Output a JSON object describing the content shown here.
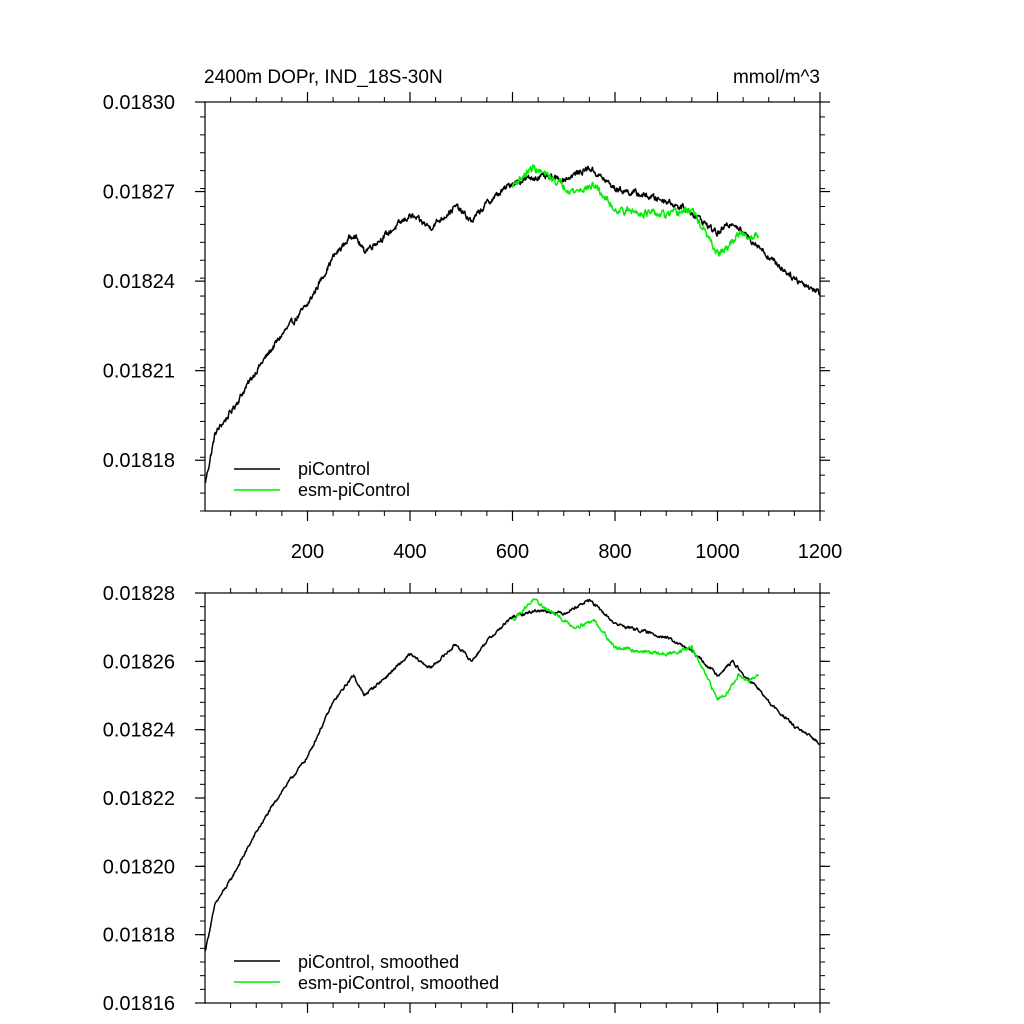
{
  "colors": {
    "picontrol": "#000000",
    "esm_picontrol": "#00ee00",
    "axis": "#000000",
    "background": "#ffffff"
  },
  "chart_data": [
    {
      "type": "line",
      "title": "2400m DOPr, IND_18S-30N",
      "units": "mmol/m^3",
      "xlim": [
        0,
        1200
      ],
      "ylim": [
        0.018163,
        0.0183
      ],
      "xticks": [
        200,
        400,
        600,
        800,
        1000,
        1200
      ],
      "xtick_labels": [
        "200",
        "400",
        "600",
        "800",
        "1000",
        "1200"
      ],
      "yticks": [
        0.01818,
        0.01821,
        0.01824,
        0.01827,
        0.0183
      ],
      "ytick_labels": [
        "0.01818",
        "0.01821",
        "0.01824",
        "0.01827",
        "0.01830"
      ],
      "legend_position": "bottom-left",
      "series": [
        {
          "name": "piControl",
          "color": "#000000",
          "noise": 1.2e-06,
          "x": [
            0,
            20,
            50,
            100,
            150,
            200,
            250,
            290,
            310,
            350,
            400,
            440,
            490,
            520,
            550,
            600,
            650,
            700,
            750,
            800,
            850,
            900,
            950,
            1000,
            1030,
            1050,
            1080,
            1100,
            1150,
            1200
          ],
          "y": [
            0.018172,
            0.018189,
            0.018196,
            0.01821,
            0.018222,
            0.018232,
            0.018248,
            0.018256,
            0.01825,
            0.018255,
            0.018262,
            0.018258,
            0.018265,
            0.01826,
            0.018266,
            0.018273,
            0.018275,
            0.018274,
            0.018278,
            0.018271,
            0.018269,
            0.018267,
            0.018263,
            0.018256,
            0.01826,
            0.018256,
            0.018252,
            0.018248,
            0.018241,
            0.018236
          ]
        },
        {
          "name": "esm-piControl",
          "color": "#00ee00",
          "noise": 1.4e-06,
          "x": [
            600,
            640,
            680,
            720,
            760,
            800,
            850,
            900,
            950,
            980,
            1000,
            1020,
            1040,
            1060,
            1080
          ],
          "y": [
            0.018272,
            0.018278,
            0.018274,
            0.01827,
            0.018272,
            0.018264,
            0.018263,
            0.018262,
            0.018264,
            0.018255,
            0.018249,
            0.018251,
            0.018256,
            0.018254,
            0.018256
          ]
        }
      ]
    },
    {
      "type": "line",
      "title": "",
      "units": "",
      "xlim": [
        0,
        1200
      ],
      "ylim": [
        0.01816,
        0.01828
      ],
      "xticks": [
        200,
        400,
        600,
        800,
        1000,
        1200
      ],
      "xtick_labels": [],
      "yticks": [
        0.01816,
        0.01818,
        0.0182,
        0.01822,
        0.01824,
        0.01826,
        0.01828
      ],
      "ytick_labels": [
        "0.01816",
        "0.01818",
        "0.01820",
        "0.01822",
        "0.01824",
        "0.01826",
        "0.01828"
      ],
      "legend_position": "bottom-left",
      "series": [
        {
          "name": "piControl, smoothed",
          "color": "#000000",
          "noise": 5e-07,
          "x": [
            0,
            20,
            50,
            100,
            150,
            200,
            250,
            290,
            310,
            350,
            400,
            440,
            490,
            520,
            550,
            600,
            650,
            700,
            750,
            800,
            850,
            900,
            950,
            1000,
            1030,
            1050,
            1080,
            1100,
            1150,
            1200
          ],
          "y": [
            0.018175,
            0.018189,
            0.018196,
            0.01821,
            0.018222,
            0.018232,
            0.018248,
            0.018256,
            0.01825,
            0.018255,
            0.018262,
            0.018258,
            0.018265,
            0.01826,
            0.018266,
            0.018273,
            0.018275,
            0.018274,
            0.018278,
            0.018271,
            0.018269,
            0.018267,
            0.018263,
            0.018256,
            0.01826,
            0.018256,
            0.018252,
            0.018248,
            0.018241,
            0.018236
          ]
        },
        {
          "name": "esm-piControl, smoothed",
          "color": "#00ee00",
          "noise": 6e-07,
          "x": [
            600,
            640,
            680,
            720,
            760,
            800,
            850,
            900,
            950,
            980,
            1000,
            1020,
            1040,
            1060,
            1080
          ],
          "y": [
            0.018272,
            0.018278,
            0.018274,
            0.01827,
            0.018272,
            0.018264,
            0.018263,
            0.018262,
            0.018264,
            0.018255,
            0.018249,
            0.018251,
            0.018256,
            0.018254,
            0.018256
          ]
        }
      ]
    }
  ]
}
